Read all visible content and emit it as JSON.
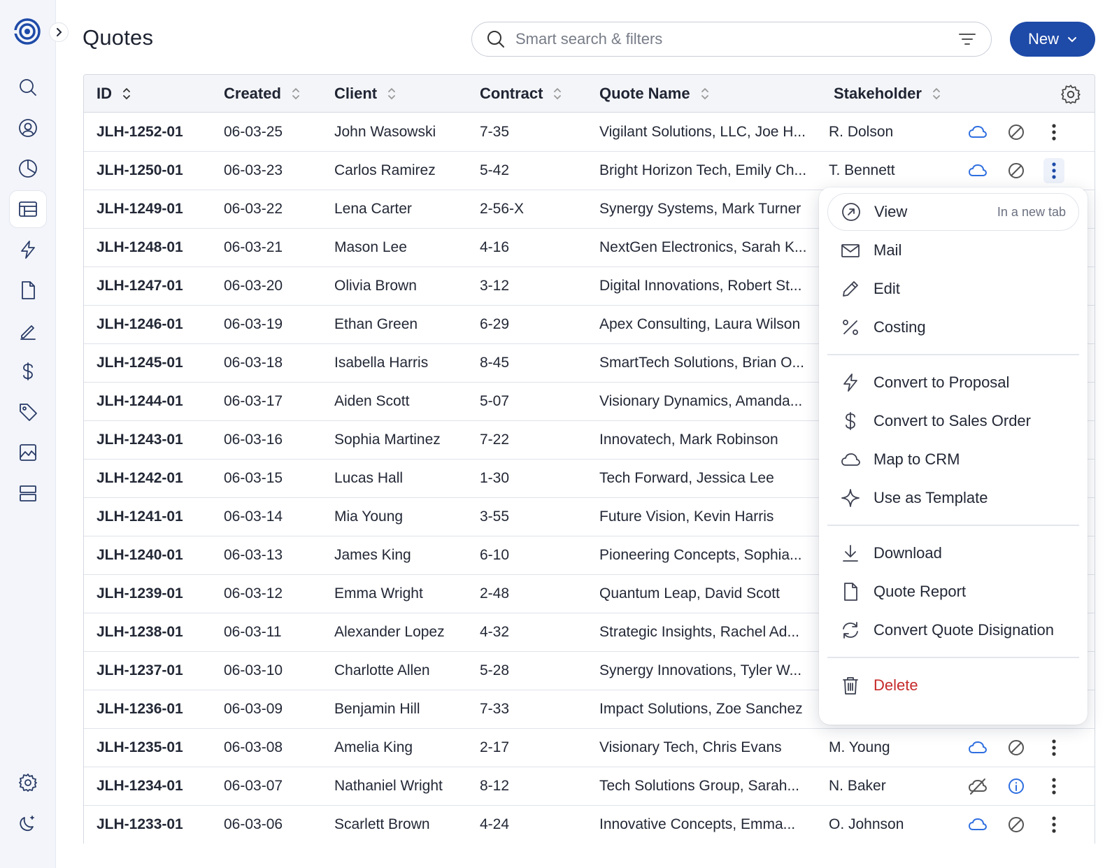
{
  "page": {
    "title": "Quotes"
  },
  "search": {
    "placeholder": "Smart search & filters"
  },
  "new_button": {
    "label": "New"
  },
  "sidebar": {
    "items": [
      {
        "icon": "search-icon"
      },
      {
        "icon": "user-circle-icon"
      },
      {
        "icon": "pie-chart-icon"
      },
      {
        "icon": "table-icon",
        "active": true
      },
      {
        "icon": "lightning-icon"
      },
      {
        "icon": "document-icon"
      },
      {
        "icon": "pen-icon"
      },
      {
        "icon": "dollar-icon"
      },
      {
        "icon": "tag-icon"
      },
      {
        "icon": "image-chart-icon"
      },
      {
        "icon": "layers-icon"
      },
      {
        "icon": "settings-icon"
      },
      {
        "icon": "moon-icon"
      }
    ]
  },
  "table": {
    "columns": [
      "ID",
      "Created",
      "Client",
      "Contract",
      "Quote Name",
      "Stakeholder"
    ],
    "rows": [
      {
        "id": "JLH-1252-01",
        "created": "06-03-25",
        "client": "John Wasowski",
        "contract": "7-35",
        "quote": "Vigilant Solutions, LLC, Joe H...",
        "stakeholder": "R. Dolson",
        "crm": "cloud",
        "status": "blocked"
      },
      {
        "id": "JLH-1250-01",
        "created": "06-03-23",
        "client": "Carlos Ramirez",
        "contract": "5-42",
        "quote": "Bright Horizon Tech, Emily Ch...",
        "stakeholder": "T. Bennett",
        "crm": "cloud",
        "status": "blocked"
      },
      {
        "id": "JLH-1249-01",
        "created": "06-03-22",
        "client": "Lena Carter",
        "contract": "2-56-X",
        "quote": "Synergy Systems, Mark Turner",
        "stakeholder": "",
        "crm": "",
        "status": ""
      },
      {
        "id": "JLH-1248-01",
        "created": "06-03-21",
        "client": "Mason Lee",
        "contract": "4-16",
        "quote": "NextGen Electronics, Sarah K...",
        "stakeholder": "",
        "crm": "",
        "status": ""
      },
      {
        "id": "JLH-1247-01",
        "created": "06-03-20",
        "client": "Olivia Brown",
        "contract": "3-12",
        "quote": "Digital Innovations, Robert St...",
        "stakeholder": "",
        "crm": "",
        "status": ""
      },
      {
        "id": "JLH-1246-01",
        "created": "06-03-19",
        "client": "Ethan Green",
        "contract": "6-29",
        "quote": "Apex Consulting, Laura Wilson",
        "stakeholder": "",
        "crm": "",
        "status": ""
      },
      {
        "id": "JLH-1245-01",
        "created": "06-03-18",
        "client": "Isabella Harris",
        "contract": "8-45",
        "quote": "SmartTech Solutions, Brian O...",
        "stakeholder": "",
        "crm": "",
        "status": ""
      },
      {
        "id": "JLH-1244-01",
        "created": "06-03-17",
        "client": "Aiden Scott",
        "contract": "5-07",
        "quote": "Visionary Dynamics, Amanda...",
        "stakeholder": "",
        "crm": "",
        "status": ""
      },
      {
        "id": "JLH-1243-01",
        "created": "06-03-16",
        "client": "Sophia Martinez",
        "contract": "7-22",
        "quote": "Innovatech, Mark Robinson",
        "stakeholder": "",
        "crm": "",
        "status": ""
      },
      {
        "id": "JLH-1242-01",
        "created": "06-03-15",
        "client": "Lucas Hall",
        "contract": "1-30",
        "quote": "Tech Forward, Jessica Lee",
        "stakeholder": "",
        "crm": "",
        "status": ""
      },
      {
        "id": "JLH-1241-01",
        "created": "06-03-14",
        "client": "Mia Young",
        "contract": "3-55",
        "quote": "Future Vision, Kevin Harris",
        "stakeholder": "",
        "crm": "",
        "status": ""
      },
      {
        "id": "JLH-1240-01",
        "created": "06-03-13",
        "client": "James King",
        "contract": "6-10",
        "quote": "Pioneering Concepts, Sophia...",
        "stakeholder": "",
        "crm": "",
        "status": ""
      },
      {
        "id": "JLH-1239-01",
        "created": "06-03-12",
        "client": "Emma Wright",
        "contract": "2-48",
        "quote": "Quantum Leap, David Scott",
        "stakeholder": "",
        "crm": "",
        "status": ""
      },
      {
        "id": "JLH-1238-01",
        "created": "06-03-11",
        "client": "Alexander Lopez",
        "contract": "4-32",
        "quote": "Strategic Insights, Rachel Ad...",
        "stakeholder": "",
        "crm": "",
        "status": ""
      },
      {
        "id": "JLH-1237-01",
        "created": "06-03-10",
        "client": "Charlotte Allen",
        "contract": "5-28",
        "quote": "Synergy Innovations, Tyler W...",
        "stakeholder": "",
        "crm": "",
        "status": ""
      },
      {
        "id": "JLH-1236-01",
        "created": "06-03-09",
        "client": "Benjamin Hill",
        "contract": "7-33",
        "quote": "Impact Solutions, Zoe Sanchez",
        "stakeholder": "",
        "crm": "",
        "status": ""
      },
      {
        "id": "JLH-1235-01",
        "created": "06-03-08",
        "client": "Amelia King",
        "contract": "2-17",
        "quote": "Visionary Tech, Chris Evans",
        "stakeholder": "M. Young",
        "crm": "cloud",
        "status": "blocked"
      },
      {
        "id": "JLH-1234-01",
        "created": "06-03-07",
        "client": "Nathaniel Wright",
        "contract": "8-12",
        "quote": "Tech Solutions Group, Sarah...",
        "stakeholder": "N. Baker",
        "crm": "cloud-off",
        "status": "info"
      },
      {
        "id": "JLH-1233-01",
        "created": "06-03-06",
        "client": "Scarlett Brown",
        "contract": "4-24",
        "quote": "Innovative Concepts, Emma...",
        "stakeholder": "O. Johnson",
        "crm": "cloud",
        "status": "blocked"
      }
    ]
  },
  "menu": {
    "items": [
      {
        "label": "View",
        "hint": "In a new tab",
        "icon": "arrow-up-right-circle-icon"
      },
      {
        "label": "Mail",
        "icon": "mail-icon"
      },
      {
        "label": "Edit",
        "icon": "pencil-icon"
      },
      {
        "label": "Costing",
        "icon": "percent-icon"
      },
      {
        "label": "Convert to Proposal",
        "icon": "lightning-icon"
      },
      {
        "label": "Convert to Sales Order",
        "icon": "dollar-icon"
      },
      {
        "label": "Map to CRM",
        "icon": "cloud-icon"
      },
      {
        "label": "Use as Template",
        "icon": "sparkle-icon"
      },
      {
        "label": "Download",
        "icon": "download-icon"
      },
      {
        "label": "Quote Report",
        "icon": "document-icon"
      },
      {
        "label": "Convert Quote Disignation",
        "icon": "refresh-icon"
      },
      {
        "label": "Delete",
        "icon": "trash-icon"
      }
    ]
  },
  "colors": {
    "accent": "#1e4aa8",
    "cloud": "#2f6fe0",
    "danger": "#c62a2a",
    "nav_icon": "#283a66"
  }
}
